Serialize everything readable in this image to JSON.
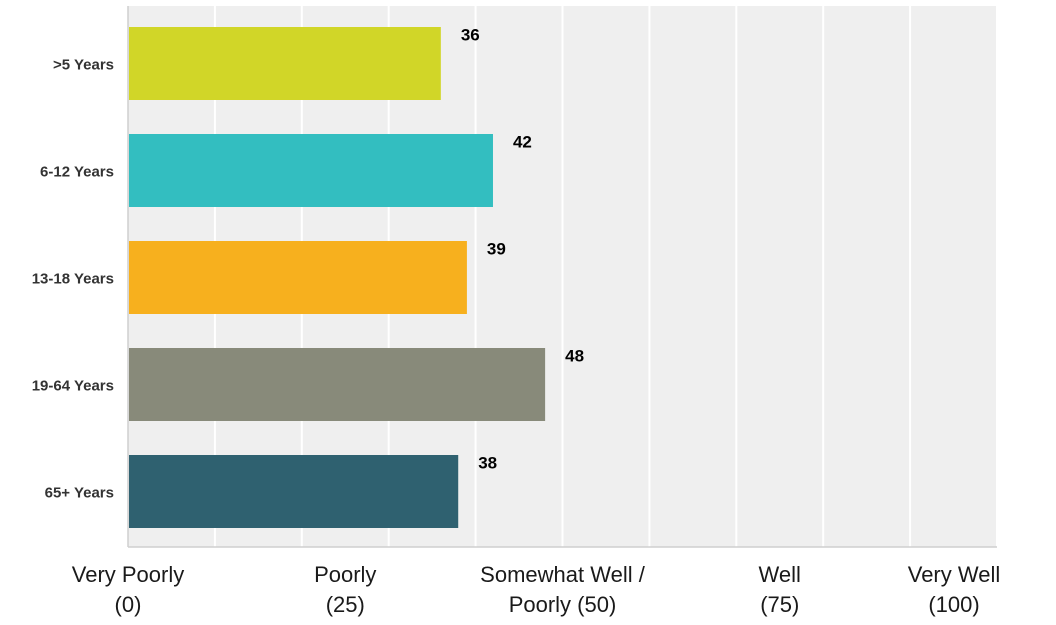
{
  "chart_data": {
    "type": "bar",
    "orientation": "horizontal",
    "categories": [
      ">5 Years",
      "6-12 Years",
      "13-18 Years",
      "19-64 Years",
      "65+ Years"
    ],
    "values": [
      36,
      42,
      39,
      48,
      38
    ],
    "colors": [
      "#d1d628",
      "#33bec0",
      "#f7b01e",
      "#888a7a",
      "#2f6170"
    ],
    "xlim": [
      0,
      100
    ],
    "grid": true,
    "x_ticks": [
      {
        "value": 0,
        "lines": [
          "Very Poorly",
          "(0)"
        ]
      },
      {
        "value": 25,
        "lines": [
          "Poorly",
          "(25)"
        ]
      },
      {
        "value": 50,
        "lines": [
          "Somewhat Well /",
          "Poorly (50)"
        ]
      },
      {
        "value": 75,
        "lines": [
          "Well",
          "(75)"
        ]
      },
      {
        "value": 100,
        "lines": [
          "Very Well",
          "(100)"
        ]
      }
    ],
    "gridline_step": 10,
    "background_color": "#efefef",
    "value_label_color": "#000000",
    "category_label_color": "#333333"
  }
}
